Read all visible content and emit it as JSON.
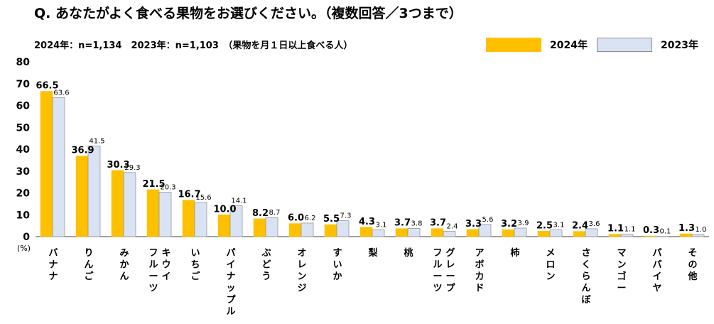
{
  "title": "Q. あなたがよく食べる果物をお選びください。（複数回答／3つまで）",
  "sample_note": "2024年：n=1,134　2023年：n=1,103　（果物を月１日以上食べる人）",
  "legend": {
    "series_2024": "2024年",
    "series_2023": "2023年"
  },
  "colors": {
    "series_2024": "#FFC000",
    "series_2023": "#DAE3F3",
    "border": "#8C8C8C"
  },
  "chart_data": {
    "type": "bar",
    "title": "あなたがよく食べる果物",
    "ylabel": "(%)",
    "ylim": [
      0,
      80
    ],
    "yticks": [
      "0",
      "10",
      "20",
      "30",
      "40",
      "50",
      "60",
      "70",
      "80"
    ],
    "categories": [
      "バナナ",
      "りんご",
      "みかん",
      "キウイフルーツ",
      "いちご",
      "パイナップル",
      "ぶどう",
      "オレンジ",
      "すいか",
      "梨",
      "桃",
      "グレープフルーツ",
      "アボカド",
      "柿",
      "メロン",
      "さくらんぼ",
      "マンゴー",
      "パパイヤ",
      "その他"
    ],
    "category_lines": [
      [
        "バナナ"
      ],
      [
        "りんご"
      ],
      [
        "みかん"
      ],
      [
        "キウイ",
        "フルーツ"
      ],
      [
        "いちご"
      ],
      [
        "パイナップル"
      ],
      [
        "ぶどう"
      ],
      [
        "オレンジ"
      ],
      [
        "すいか"
      ],
      [
        "梨"
      ],
      [
        "桃"
      ],
      [
        "グレープ",
        "フルーツ"
      ],
      [
        "アボカド"
      ],
      [
        "柿"
      ],
      [
        "メロン"
      ],
      [
        "さくらんぼ"
      ],
      [
        "マンゴー"
      ],
      [
        "パパイヤ"
      ],
      [
        "その他"
      ]
    ],
    "series": [
      {
        "name": "2024年",
        "values": [
          66.5,
          36.9,
          30.3,
          21.5,
          16.7,
          10.0,
          8.2,
          6.0,
          5.5,
          4.3,
          3.7,
          3.7,
          3.3,
          3.2,
          2.5,
          2.4,
          1.1,
          0.3,
          1.3
        ],
        "labels": [
          "66.5",
          "36.9",
          "30.3",
          "21.5",
          "16.7",
          "10.0",
          "8.2",
          "6.0",
          "5.5",
          "4.3",
          "3.7",
          "3.7",
          "3.3",
          "3.2",
          "2.5",
          "2.4",
          "1.1",
          "0.3",
          "1.3"
        ]
      },
      {
        "name": "2023年",
        "values": [
          63.6,
          41.5,
          29.3,
          20.3,
          15.6,
          14.1,
          8.7,
          6.2,
          7.3,
          3.1,
          3.8,
          2.4,
          5.6,
          3.9,
          3.1,
          3.6,
          1.1,
          0.1,
          1.0
        ],
        "labels": [
          "63.6",
          "41.5",
          "29.3",
          "20.3",
          "15.6",
          "14.1",
          "8.7",
          "6.2",
          "7.3",
          "3.1",
          "3.8",
          "2.4",
          "5.6",
          "3.9",
          "3.1",
          "3.6",
          "1.1",
          "0.1",
          "1.0"
        ]
      }
    ]
  }
}
